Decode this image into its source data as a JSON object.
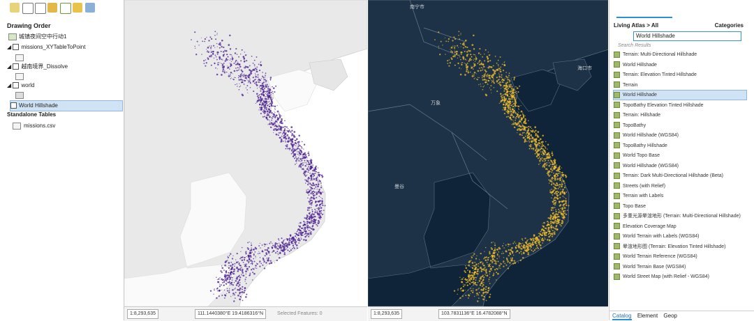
{
  "drawing_order": {
    "title": "Drawing Order",
    "map": "城镇夜间空中行动1",
    "layers": [
      "missions_XYTableToPoint",
      "越南境界_Dissolve",
      "world",
      "World Hillshade"
    ],
    "tables_title": "Standalone Tables",
    "tables": [
      "missions.csv"
    ]
  },
  "maps": [
    {
      "scale": "1:8,293,635",
      "coords": "111.1440380°E 19.4186316°N",
      "selected": "Selected Features: 0"
    },
    {
      "scale": "1:8,293,635",
      "coords": "103.7831136°E 16.4782088°N",
      "labels": [
        "南宁市",
        "海口市",
        "万象",
        "曼谷"
      ]
    }
  ],
  "catalog": {
    "breadcrumb": "Living Atlas > All",
    "categories": "Categories",
    "search": "World Hillshade",
    "results_header": "Search Results",
    "selected_index": 4,
    "items": [
      "Terrain: Multi-Directional Hillshade",
      "World Hillshade",
      "Terrain: Elevation Tinted Hillshade",
      "Terrain",
      "World Hillshade",
      "TopoBathy Elevation Tinted Hillshade",
      "Terrain: Hillshade",
      "TopoBathy",
      "World Hillshade (WGS84)",
      "TopoBathy Hillshade",
      "World Topo Base",
      "World Hillshade (WGS84)",
      "Terrain: Dark Multi-Directional Hillshade (Beta)",
      "Streets (with Relief)",
      "Terrain with Labels",
      "Topo Base",
      "多重光源晕渲地形 (Terrain: Multi-Directional Hillshade)",
      "Elevation Coverage Map",
      "World Terrain with Labels (WGS84)",
      "晕渲地形图 (Terrain: Elevation Tinted Hillshade)",
      "World Terrain Reference (WGS84)",
      "World Terrain Base (WGS84)",
      "World Street Map (with Relief - WGS84)"
    ],
    "tabs": [
      "Catalog",
      "Element",
      "Geop"
    ]
  }
}
